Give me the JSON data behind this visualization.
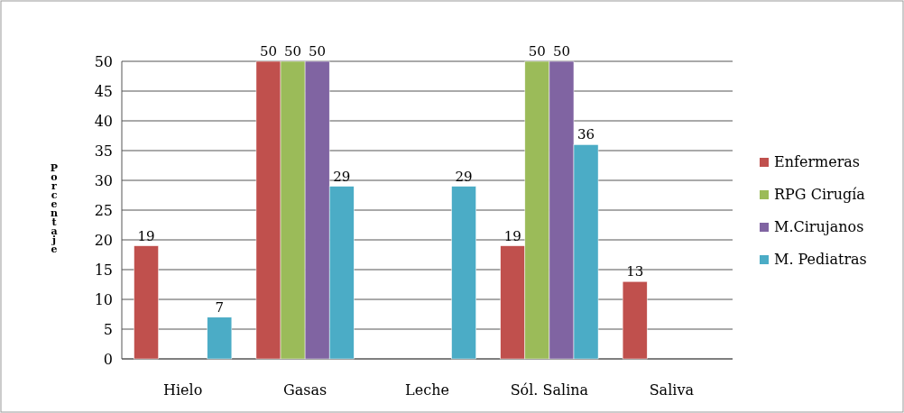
{
  "chart_data": {
    "type": "bar",
    "ylabel": "Porcentaje",
    "categories": [
      "Hielo",
      "Gasas",
      "Leche",
      "Sól. Salina",
      "Saliva"
    ],
    "series": [
      {
        "name": "Enfermeras",
        "color": "#c0504d",
        "values": [
          19,
          50,
          null,
          19,
          13
        ]
      },
      {
        "name": "RPG Cirugía",
        "color": "#9bbb59",
        "values": [
          null,
          50,
          null,
          50,
          null
        ]
      },
      {
        "name": "M.Cirujanos",
        "color": "#8064a2",
        "values": [
          null,
          50,
          null,
          50,
          null
        ]
      },
      {
        "name": "M. Pediatras",
        "color": "#4bacc6",
        "values": [
          7,
          29,
          29,
          36,
          null
        ]
      }
    ],
    "ylim": [
      0,
      50
    ],
    "yticks": [
      0,
      5,
      10,
      15,
      20,
      25,
      30,
      35,
      40,
      45,
      50
    ],
    "grid": "y",
    "legend": "right",
    "data_labels": true
  }
}
